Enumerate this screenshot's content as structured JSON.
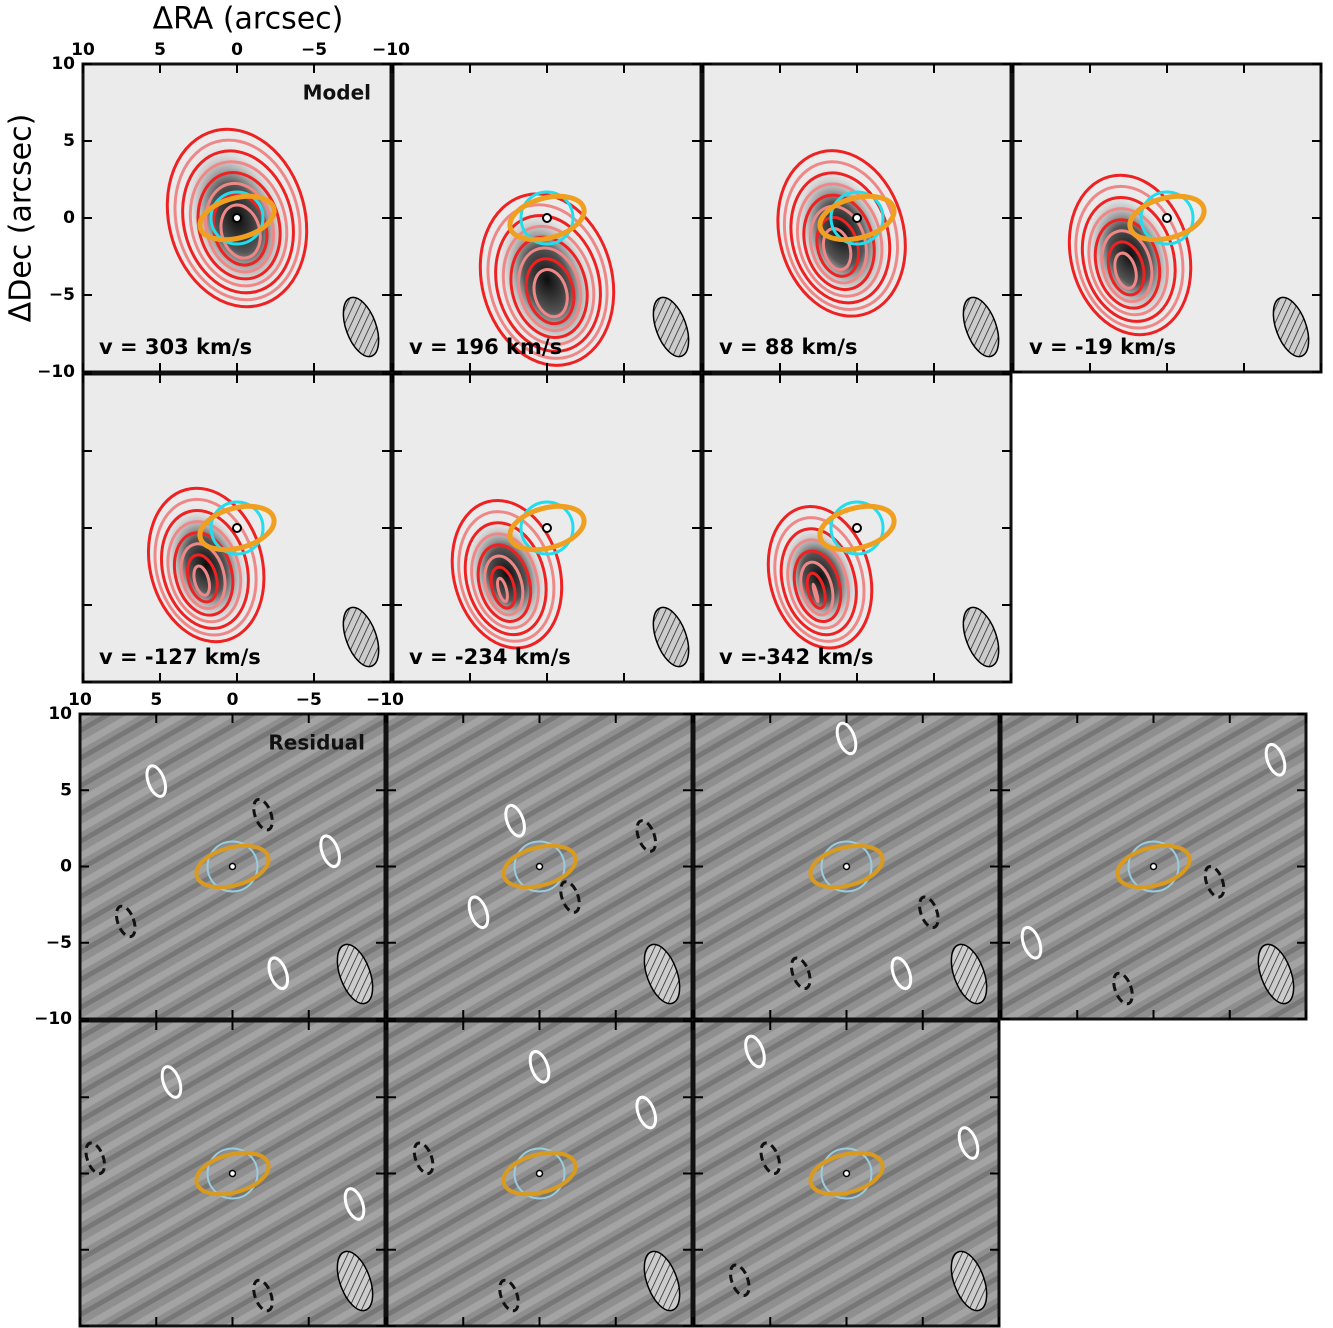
{
  "chart_data": [
    {
      "type": "channel-map",
      "title": "Model",
      "xlabel": "ΔRA (arcsec)",
      "ylabel": "ΔDec (arcsec)",
      "xlim": [
        10,
        -10
      ],
      "ylim": [
        -10,
        10
      ],
      "xticks": [
        10,
        5,
        0,
        {
          "value": -5,
          "label": "−5"
        },
        {
          "value": -10,
          "label": "−10"
        }
      ],
      "yticks": [
        {
          "value": -10,
          "label": "−10"
        },
        {
          "value": -5,
          "label": "−5"
        },
        0,
        5,
        10
      ],
      "panels": [
        "v = 303 km/s",
        "v = 196 km/s",
        "v = 88 km/s",
        "v = -19 km/s",
        "v = -127 km/s",
        "v = -234 km/s",
        "v =-342 km/s"
      ]
    },
    {
      "type": "channel-map",
      "title": "Residual",
      "xlim": [
        10,
        -10
      ],
      "ylim": [
        -10,
        10
      ],
      "xticks": [
        10,
        5,
        0,
        {
          "value": -5,
          "label": "−5"
        },
        {
          "value": -10,
          "label": "−10"
        }
      ],
      "yticks": [
        {
          "value": -10,
          "label": "−10"
        },
        {
          "value": -5,
          "label": "−5"
        },
        0,
        5,
        10
      ]
    }
  ]
}
